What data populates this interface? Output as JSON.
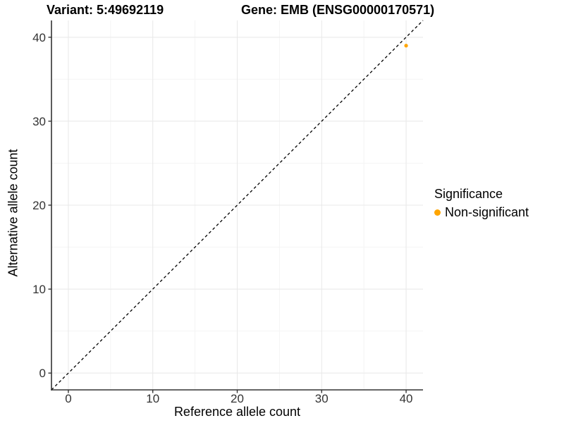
{
  "titles": {
    "variant": "Variant: 5:49692119",
    "gene": "Gene: EMB (ENSG00000170571)"
  },
  "axes": {
    "x_label": "Reference allele count",
    "y_label": "Alternative allele count"
  },
  "legend": {
    "title": "Significance",
    "items": [
      {
        "label": "Non-significant",
        "color": "#FFA500"
      }
    ]
  },
  "chart_data": {
    "type": "scatter",
    "title": "Variant: 5:49692119   Gene: EMB (ENSG00000170571)",
    "xlabel": "Reference allele count",
    "ylabel": "Alternative allele count",
    "xlim": [
      -2,
      42
    ],
    "ylim": [
      -2,
      42
    ],
    "x_ticks": [
      0,
      10,
      20,
      30,
      40
    ],
    "y_ticks": [
      0,
      10,
      20,
      30,
      40
    ],
    "x_minor_ticks": [
      5,
      15,
      25,
      35
    ],
    "y_minor_ticks": [
      5,
      15,
      25,
      35
    ],
    "grid": true,
    "legend_position": "right",
    "series": [
      {
        "name": "Non-significant",
        "color": "#FFA500",
        "points": [
          {
            "x": 40,
            "y": 39
          }
        ]
      }
    ],
    "reference_line": {
      "type": "identity",
      "equation": "y = x",
      "style": "dashed",
      "color": "#000000"
    }
  },
  "style_colors": {
    "axis_line": "#333333",
    "major_grid": "#e8e8e8",
    "minor_grid": "#f4f4f4",
    "tick_label": "#333333",
    "point": "#FFA500"
  }
}
